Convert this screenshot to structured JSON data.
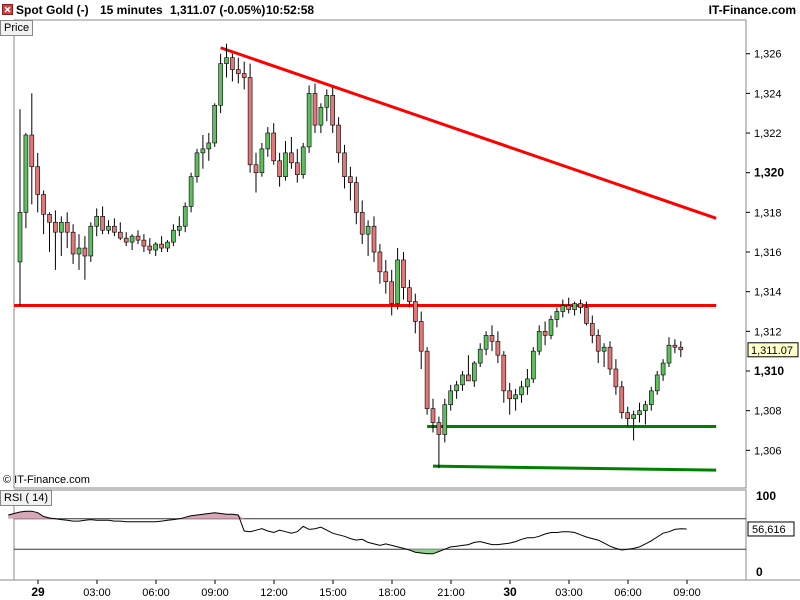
{
  "header": {
    "instrument": "Spot Gold (-)",
    "timeframe": "15 minutes",
    "quote": "1,311.07 (-0.05%)",
    "time": "10:52:58",
    "brand": "IT-Finance.com"
  },
  "price_panel": {
    "label": "Price"
  },
  "rsi_panel": {
    "label": "RSI ( 14)"
  },
  "copyright": "© IT-Finance.com",
  "colors": {
    "up_candle": "#5fbf5f",
    "down_candle": "#e07878",
    "resistance_line": "#ff0000",
    "support_line": "#008000",
    "last_price_tag": "#ffffcc"
  },
  "chart_data": [
    {
      "type": "candlestick",
      "title": "Spot Gold (-) 15 minutes",
      "ylabel": "Price",
      "ylim": [
        1304.1,
        1327.7
      ],
      "y_ticks": [
        1306,
        1308,
        1310,
        1312,
        1314,
        1316,
        1318,
        1320,
        1322,
        1324,
        1326
      ],
      "y_tick_labels": [
        "1,306",
        "1,308",
        "1,310",
        "1,312",
        "1,314",
        "1,316",
        "1,318",
        "1,320",
        "1,322",
        "1,324",
        "1,326"
      ],
      "x_ticks": [
        "29",
        "03:00",
        "06:00",
        "09:00",
        "12:00",
        "15:00",
        "18:00",
        "21:00",
        "30",
        "03:00",
        "06:00",
        "09:00"
      ],
      "x_ticks_bold": [
        0,
        8
      ],
      "last_price": 1311.07,
      "last_price_label": "1,311.07",
      "grid": false,
      "ohlc": [
        [
          1315.5,
          1323.2,
          1313.3,
          1318.0
        ],
        [
          1318.0,
          1322.0,
          1317.2,
          1321.9
        ],
        [
          1321.9,
          1324.0,
          1318.4,
          1320.3
        ],
        [
          1320.3,
          1321.0,
          1318.0,
          1318.9
        ],
        [
          1318.9,
          1319.1,
          1316.9,
          1317.9
        ],
        [
          1317.9,
          1318.0,
          1316.0,
          1317.5
        ],
        [
          1317.5,
          1318.1,
          1315.1,
          1317.0
        ],
        [
          1317.0,
          1317.8,
          1315.8,
          1317.5
        ],
        [
          1317.5,
          1318.0,
          1316.2,
          1317.0
        ],
        [
          1317.0,
          1317.4,
          1315.4,
          1315.9
        ],
        [
          1315.9,
          1316.9,
          1315.1,
          1316.2
        ],
        [
          1316.2,
          1316.8,
          1314.6,
          1315.8
        ],
        [
          1315.8,
          1317.5,
          1315.5,
          1317.3
        ],
        [
          1317.3,
          1318.2,
          1316.8,
          1317.8
        ],
        [
          1317.8,
          1318.3,
          1316.9,
          1317.1
        ],
        [
          1317.1,
          1317.6,
          1316.9,
          1317.3
        ],
        [
          1317.3,
          1317.7,
          1316.8,
          1317.0
        ],
        [
          1317.0,
          1317.5,
          1316.6,
          1316.7
        ],
        [
          1316.7,
          1317.0,
          1316.3,
          1316.5
        ],
        [
          1316.5,
          1316.9,
          1316.1,
          1316.8
        ],
        [
          1316.8,
          1317.1,
          1316.4,
          1316.6
        ],
        [
          1316.6,
          1316.9,
          1316.0,
          1316.3
        ],
        [
          1316.3,
          1316.7,
          1315.9,
          1316.1
        ],
        [
          1316.1,
          1316.5,
          1315.8,
          1316.4
        ],
        [
          1316.4,
          1316.8,
          1316.0,
          1316.2
        ],
        [
          1316.2,
          1316.6,
          1316.0,
          1316.5
        ],
        [
          1316.5,
          1317.4,
          1316.3,
          1317.1
        ],
        [
          1317.1,
          1317.8,
          1316.8,
          1317.3
        ],
        [
          1317.3,
          1318.5,
          1317.0,
          1318.3
        ],
        [
          1318.3,
          1320.0,
          1318.0,
          1319.8
        ],
        [
          1319.8,
          1321.2,
          1319.5,
          1321.0
        ],
        [
          1321.0,
          1321.9,
          1320.2,
          1321.2
        ],
        [
          1321.2,
          1322.0,
          1320.6,
          1321.5
        ],
        [
          1321.5,
          1323.5,
          1321.3,
          1323.4
        ],
        [
          1323.4,
          1326.0,
          1323.0,
          1325.5
        ],
        [
          1325.5,
          1326.5,
          1324.8,
          1325.8
        ],
        [
          1325.8,
          1326.0,
          1324.6,
          1325.2
        ],
        [
          1325.2,
          1325.8,
          1324.5,
          1325.0
        ],
        [
          1325.0,
          1325.6,
          1324.2,
          1324.8
        ],
        [
          1324.8,
          1325.5,
          1320.0,
          1320.4
        ],
        [
          1320.4,
          1321.0,
          1319.0,
          1320.0
        ],
        [
          1320.0,
          1321.5,
          1319.8,
          1321.2
        ],
        [
          1321.2,
          1322.3,
          1320.8,
          1322.0
        ],
        [
          1322.0,
          1322.5,
          1320.4,
          1320.6
        ],
        [
          1320.6,
          1321.0,
          1319.3,
          1319.8
        ],
        [
          1319.8,
          1321.6,
          1319.6,
          1321.0
        ],
        [
          1321.0,
          1321.8,
          1320.2,
          1320.5
        ],
        [
          1320.5,
          1321.2,
          1319.5,
          1319.9
        ],
        [
          1319.9,
          1321.5,
          1319.7,
          1321.3
        ],
        [
          1321.3,
          1324.4,
          1321.0,
          1324.0
        ],
        [
          1324.0,
          1324.5,
          1322.0,
          1322.4
        ],
        [
          1322.4,
          1323.5,
          1322.0,
          1323.3
        ],
        [
          1323.3,
          1324.2,
          1322.6,
          1323.9
        ],
        [
          1323.9,
          1324.3,
          1322.0,
          1322.4
        ],
        [
          1322.4,
          1322.8,
          1320.5,
          1321.0
        ],
        [
          1321.0,
          1321.4,
          1319.2,
          1319.8
        ],
        [
          1319.8,
          1320.3,
          1318.6,
          1319.5
        ],
        [
          1319.5,
          1319.8,
          1317.4,
          1318.0
        ],
        [
          1318.0,
          1318.6,
          1316.4,
          1316.9
        ],
        [
          1316.9,
          1317.6,
          1315.8,
          1317.3
        ],
        [
          1317.3,
          1317.8,
          1315.5,
          1316.0
        ],
        [
          1316.0,
          1316.4,
          1314.4,
          1315.0
        ],
        [
          1315.0,
          1315.6,
          1313.9,
          1314.5
        ],
        [
          1314.5,
          1315.1,
          1312.8,
          1313.4
        ],
        [
          1313.4,
          1316.2,
          1313.1,
          1315.6
        ],
        [
          1315.6,
          1316.0,
          1313.6,
          1314.2
        ],
        [
          1314.2,
          1314.6,
          1313.2,
          1313.5
        ],
        [
          1313.5,
          1313.9,
          1311.9,
          1312.5
        ],
        [
          1312.5,
          1313.0,
          1310.1,
          1311.0
        ],
        [
          1311.0,
          1311.2,
          1307.8,
          1308.1
        ],
        [
          1308.1,
          1308.6,
          1306.9,
          1307.4
        ],
        [
          1307.4,
          1307.7,
          1305.1,
          1306.8
        ],
        [
          1306.8,
          1308.6,
          1306.4,
          1308.3
        ],
        [
          1308.3,
          1309.3,
          1308.0,
          1309.0
        ],
        [
          1309.0,
          1309.5,
          1308.6,
          1309.3
        ],
        [
          1309.3,
          1310.0,
          1309.0,
          1309.8
        ],
        [
          1309.8,
          1310.8,
          1309.5,
          1309.5
        ],
        [
          1309.5,
          1310.5,
          1309.2,
          1310.4
        ],
        [
          1310.4,
          1311.4,
          1310.2,
          1311.1
        ],
        [
          1311.1,
          1312.0,
          1310.8,
          1311.8
        ],
        [
          1311.8,
          1312.3,
          1311.0,
          1311.5
        ],
        [
          1311.5,
          1312.0,
          1310.4,
          1310.8
        ],
        [
          1310.8,
          1311.0,
          1308.4,
          1309.0
        ],
        [
          1309.0,
          1309.4,
          1307.8,
          1308.6
        ],
        [
          1308.6,
          1309.1,
          1308.0,
          1308.8
        ],
        [
          1308.8,
          1309.5,
          1308.4,
          1309.2
        ],
        [
          1309.2,
          1310.1,
          1308.8,
          1309.6
        ],
        [
          1309.6,
          1311.2,
          1309.4,
          1311.0
        ],
        [
          1311.0,
          1312.3,
          1310.8,
          1312.0
        ],
        [
          1312.0,
          1312.5,
          1311.3,
          1311.8
        ],
        [
          1311.8,
          1312.8,
          1311.6,
          1312.6
        ],
        [
          1312.6,
          1313.2,
          1312.2,
          1313.0
        ],
        [
          1313.0,
          1313.6,
          1312.7,
          1313.3
        ],
        [
          1313.3,
          1313.7,
          1312.9,
          1313.1
        ],
        [
          1313.1,
          1313.5,
          1312.8,
          1313.4
        ],
        [
          1313.4,
          1313.6,
          1312.9,
          1313.2
        ],
        [
          1313.2,
          1313.5,
          1312.3,
          1312.4
        ],
        [
          1312.4,
          1312.8,
          1311.4,
          1311.8
        ],
        [
          1311.8,
          1312.1,
          1310.4,
          1311.0
        ],
        [
          1311.0,
          1311.4,
          1310.2,
          1311.2
        ],
        [
          1311.2,
          1311.5,
          1309.8,
          1310.1
        ],
        [
          1310.1,
          1310.6,
          1308.8,
          1309.2
        ],
        [
          1309.2,
          1309.5,
          1307.6,
          1307.9
        ],
        [
          1307.9,
          1308.2,
          1307.2,
          1307.6
        ],
        [
          1307.6,
          1308.0,
          1306.5,
          1307.8
        ],
        [
          1307.8,
          1308.4,
          1307.4,
          1308.0
        ],
        [
          1308.0,
          1308.5,
          1307.3,
          1308.3
        ],
        [
          1308.3,
          1309.2,
          1308.0,
          1309.0
        ],
        [
          1309.0,
          1310.0,
          1308.8,
          1309.8
        ],
        [
          1309.8,
          1310.6,
          1309.5,
          1310.4
        ],
        [
          1310.4,
          1311.7,
          1310.2,
          1311.3
        ],
        [
          1311.3,
          1311.6,
          1310.9,
          1311.2
        ],
        [
          1311.2,
          1311.5,
          1310.7,
          1311.07
        ]
      ],
      "annotations": [
        {
          "kind": "trendline",
          "color": "#ff0000",
          "from": [
            34,
            1326.3
          ],
          "to": [
            118,
            1317.7
          ]
        },
        {
          "kind": "horizontal",
          "color": "#ff0000",
          "from": [
            -1,
            1313.3
          ],
          "to": [
            118,
            1313.3
          ]
        },
        {
          "kind": "horizontal",
          "color": "#008000",
          "from": [
            69,
            1307.2
          ],
          "to": [
            118,
            1307.2
          ]
        },
        {
          "kind": "horizontal",
          "color": "#008000",
          "from": [
            70,
            1305.2
          ],
          "to": [
            118,
            1305.0
          ]
        }
      ]
    },
    {
      "type": "line",
      "title": "RSI ( 14)",
      "ylim": [
        0,
        100
      ],
      "y_ticks": [
        0,
        100
      ],
      "levels": [
        70,
        30
      ],
      "last_value": 56.616,
      "last_value_label": "56,616",
      "series": [
        {
          "values": [
            75,
            77,
            79,
            80,
            80,
            78,
            73,
            71,
            70,
            69,
            68,
            67,
            67,
            68,
            69,
            68,
            68,
            68,
            67,
            67,
            66,
            66,
            66,
            66,
            66,
            66,
            67,
            68,
            69,
            70,
            72,
            74,
            75,
            76,
            77,
            78,
            77,
            76,
            76,
            75,
            54,
            53,
            55,
            57,
            54,
            52,
            55,
            53,
            51,
            53,
            60,
            56,
            57,
            59,
            55,
            51,
            49,
            47,
            44,
            42,
            43,
            39,
            37,
            35,
            37,
            35,
            33,
            31,
            29,
            26,
            25,
            24,
            24,
            27,
            30,
            33,
            34,
            35,
            36,
            39,
            40,
            38,
            36,
            36,
            37,
            38,
            40,
            43,
            45,
            45,
            47,
            50,
            52,
            52,
            53,
            53,
            52,
            49,
            46,
            44,
            42,
            38,
            34,
            31,
            29,
            30,
            31,
            33,
            37,
            41,
            46,
            51,
            53,
            56,
            57,
            56.6
          ]
        }
      ]
    }
  ]
}
